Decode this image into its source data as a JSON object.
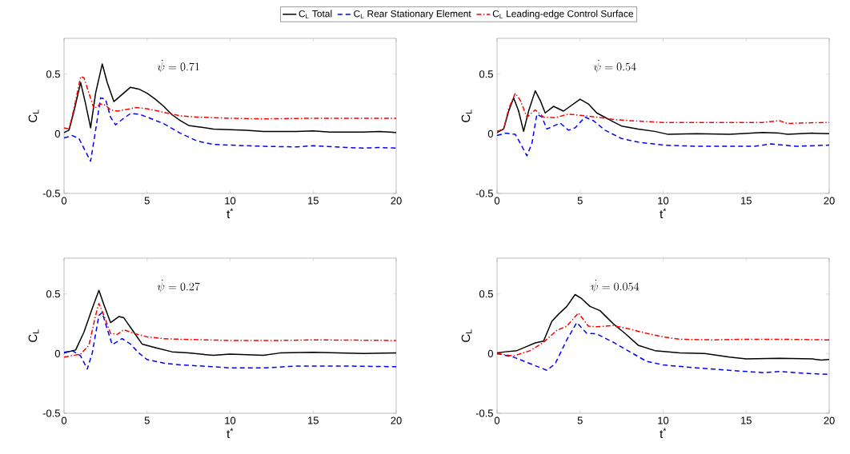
{
  "chart_data": [
    {
      "type": "line",
      "xlabel": "t$^{*}$",
      "ylabel": "C$_{L}$",
      "xlim": [
        0,
        20
      ],
      "ylim": [
        -0.5,
        0.8
      ],
      "xticks": [
        0,
        5,
        10,
        15,
        20
      ],
      "yticks": [
        -0.5,
        0,
        0.5
      ],
      "legend": "top",
      "annotations": [
        "\\dot{\\psi} = 0.71"
      ],
      "series": [
        {
          "name": "C$_{L}$ Total",
          "color": "#000000",
          "line_style": "solid",
          "x": [
            0,
            0.3,
            0.6,
            1.0,
            1.3,
            1.6,
            1.9,
            2.3,
            2.6,
            3.0,
            3.5,
            4.0,
            4.5,
            5,
            5.5,
            6,
            6.5,
            7,
            7.5,
            8,
            9,
            10,
            11,
            12,
            14,
            15,
            16,
            18,
            19,
            20
          ],
          "values": [
            0.01,
            0.03,
            0.19,
            0.43,
            0.25,
            0.05,
            0.34,
            0.585,
            0.43,
            0.27,
            0.33,
            0.39,
            0.375,
            0.34,
            0.29,
            0.23,
            0.16,
            0.11,
            0.07,
            0.06,
            0.04,
            0.035,
            0.03,
            0.02,
            0.02,
            0.025,
            0.015,
            0.015,
            0.02,
            0.01
          ]
        },
        {
          "name": "C$_{L}$ Rear Stationary Element",
          "color": "#0000ff",
          "line_style": "dashed",
          "x": [
            0,
            0.5,
            0.9,
            1.3,
            1.6,
            1.9,
            2.2,
            2.5,
            2.8,
            3.1,
            3.5,
            4,
            4.5,
            5,
            6,
            7,
            8,
            9,
            10,
            12,
            14,
            15,
            17,
            18,
            19,
            20
          ],
          "values": [
            -0.035,
            -0.015,
            -0.04,
            -0.15,
            -0.23,
            0.03,
            0.3,
            0.29,
            0.14,
            0.075,
            0.12,
            0.17,
            0.165,
            0.14,
            0.085,
            0.005,
            -0.06,
            -0.09,
            -0.095,
            -0.105,
            -0.11,
            -0.1,
            -0.115,
            -0.12,
            -0.115,
            -0.12
          ]
        },
        {
          "name": "C$_{L}$ Leading-edge Control Surface",
          "color": "#ff0000",
          "line_style": "dashdot",
          "x": [
            0,
            0.3,
            0.6,
            1.0,
            1.2,
            1.5,
            1.8,
            2.2,
            2.5,
            2.8,
            3.2,
            4,
            4.3,
            5,
            6,
            7,
            8,
            10,
            12,
            15,
            18,
            20
          ],
          "values": [
            0.05,
            0.04,
            0.21,
            0.48,
            0.47,
            0.34,
            0.21,
            0.25,
            0.24,
            0.2,
            0.19,
            0.21,
            0.22,
            0.21,
            0.18,
            0.15,
            0.14,
            0.13,
            0.125,
            0.13,
            0.13,
            0.13
          ]
        }
      ]
    },
    {
      "type": "line",
      "xlabel": "t$^{*}$",
      "ylabel": "C$_{L}$",
      "xlim": [
        0,
        20
      ],
      "ylim": [
        -0.5,
        0.8
      ],
      "xticks": [
        0,
        5,
        10,
        15,
        20
      ],
      "yticks": [
        -0.5,
        0,
        0.5
      ],
      "annotations": [
        "\\dot{\\psi} = 0.54"
      ],
      "series": [
        {
          "color": "#000000",
          "line_style": "solid",
          "x": [
            0,
            0.4,
            0.7,
            1,
            1.3,
            1.6,
            1.9,
            2.3,
            2.6,
            2.9,
            3.4,
            4,
            4.5,
            5,
            5.5,
            6,
            7,
            7.5,
            8.5,
            9.5,
            10.3,
            12,
            14,
            16,
            17,
            17.5,
            19,
            20
          ],
          "values": [
            0.01,
            0.04,
            0.19,
            0.3,
            0.19,
            0.02,
            0.19,
            0.36,
            0.28,
            0.175,
            0.23,
            0.19,
            0.24,
            0.29,
            0.25,
            0.175,
            0.1,
            0.065,
            0.04,
            0.02,
            -0.005,
            0,
            -0.005,
            0.01,
            0.005,
            -0.005,
            0.005,
            0
          ]
        },
        {
          "color": "#0000ff",
          "line_style": "dashed",
          "x": [
            0,
            0.5,
            1.1,
            1.4,
            1.8,
            2.1,
            2.4,
            2.7,
            3,
            3.4,
            3.8,
            4.3,
            4.7,
            5.3,
            5.8,
            6.5,
            7.5,
            8.5,
            10,
            12,
            14,
            15.5,
            16.5,
            18,
            20
          ],
          "values": [
            -0.015,
            0.005,
            -0.005,
            -0.08,
            -0.185,
            -0.08,
            0.165,
            0.14,
            0.04,
            0.065,
            0.09,
            0.03,
            0.05,
            0.14,
            0.11,
            0.03,
            -0.04,
            -0.07,
            -0.095,
            -0.105,
            -0.105,
            -0.105,
            -0.085,
            -0.105,
            -0.095
          ]
        },
        {
          "color": "#ff0000",
          "line_style": "dashdot",
          "x": [
            0,
            0.4,
            0.7,
            1.1,
            1.4,
            1.8,
            2.3,
            2.8,
            3.5,
            4.3,
            5,
            6,
            7,
            8,
            10,
            13,
            16,
            17,
            17.5,
            18,
            20
          ],
          "values": [
            0.02,
            0.04,
            0.21,
            0.34,
            0.28,
            0.14,
            0.2,
            0.14,
            0.135,
            0.165,
            0.155,
            0.14,
            0.12,
            0.11,
            0.095,
            0.095,
            0.095,
            0.11,
            0.085,
            0.09,
            0.095
          ]
        }
      ]
    },
    {
      "type": "line",
      "xlabel": "t$^{*}$",
      "ylabel": "C$_{L}$",
      "xlim": [
        0,
        20
      ],
      "ylim": [
        -0.5,
        0.8
      ],
      "xticks": [
        0,
        5,
        10,
        15,
        20
      ],
      "yticks": [
        -0.5,
        0,
        0.5
      ],
      "annotations": [
        "\\dot{\\psi} = 0.27"
      ],
      "series": [
        {
          "color": "#000000",
          "line_style": "solid",
          "x": [
            0,
            0.7,
            1.2,
            1.7,
            2.1,
            2.4,
            2.8,
            3.3,
            3.6,
            4.2,
            4.7,
            5.5,
            6.5,
            7.5,
            9,
            10,
            12,
            13,
            15,
            18,
            20
          ],
          "values": [
            0.005,
            0.03,
            0.18,
            0.38,
            0.53,
            0.41,
            0.26,
            0.31,
            0.3,
            0.18,
            0.08,
            0.05,
            0.015,
            0.005,
            -0.015,
            -0.005,
            -0.015,
            0.005,
            0.01,
            0,
            0.005
          ]
        },
        {
          "color": "#0000ff",
          "line_style": "dashed",
          "x": [
            0,
            0.5,
            1.0,
            1.4,
            1.7,
            2.1,
            2.3,
            2.6,
            2.9,
            3.5,
            4,
            4.5,
            5,
            6,
            7,
            9,
            10,
            12,
            14,
            17,
            20
          ],
          "values": [
            0.01,
            0.025,
            -0.02,
            -0.13,
            0.005,
            0.32,
            0.345,
            0.205,
            0.075,
            0.125,
            0.08,
            0.005,
            -0.05,
            -0.08,
            -0.095,
            -0.11,
            -0.12,
            -0.12,
            -0.105,
            -0.105,
            -0.11
          ]
        },
        {
          "color": "#ff0000",
          "line_style": "dashdot",
          "x": [
            0,
            1,
            1.5,
            1.9,
            2.1,
            2.4,
            2.8,
            3.2,
            3.6,
            4.2,
            5,
            6,
            7,
            10,
            13,
            15,
            20
          ],
          "values": [
            -0.03,
            -0.005,
            0.07,
            0.32,
            0.42,
            0.32,
            0.17,
            0.16,
            0.2,
            0.17,
            0.14,
            0.125,
            0.12,
            0.11,
            0.11,
            0.115,
            0.11
          ]
        }
      ]
    },
    {
      "type": "line",
      "xlabel": "t$^{*}$",
      "ylabel": "C$_{L}$",
      "xlim": [
        0,
        20
      ],
      "ylim": [
        -0.5,
        0.8
      ],
      "xticks": [
        0,
        5,
        10,
        15,
        20
      ],
      "yticks": [
        -0.5,
        0,
        0.5
      ],
      "annotations": [
        "\\dot{\\psi} = 0.054"
      ],
      "series": [
        {
          "color": "#000000",
          "line_style": "solid",
          "x": [
            0,
            0.5,
            1.2,
            1.8,
            2.3,
            2.8,
            3.3,
            3.7,
            4.2,
            4.7,
            5.1,
            5.6,
            6.2,
            7,
            7.7,
            8.5,
            9.5,
            11,
            12.5,
            14,
            15,
            17,
            19,
            19.5,
            20
          ],
          "values": [
            0.005,
            0.015,
            0.025,
            0.06,
            0.09,
            0.105,
            0.27,
            0.33,
            0.395,
            0.495,
            0.46,
            0.395,
            0.36,
            0.25,
            0.17,
            0.07,
            0.025,
            0.005,
            0,
            -0.03,
            -0.045,
            -0.04,
            -0.045,
            -0.055,
            -0.05
          ]
        },
        {
          "color": "#0000ff",
          "line_style": "dashed",
          "x": [
            0,
            1,
            2,
            3,
            3.5,
            4.2,
            4.8,
            5.4,
            6,
            7,
            8,
            9,
            10,
            12,
            14,
            16,
            17,
            18.5,
            20
          ],
          "values": [
            0,
            -0.03,
            -0.085,
            -0.14,
            -0.085,
            0.115,
            0.26,
            0.17,
            0.165,
            0.095,
            0.015,
            -0.065,
            -0.095,
            -0.12,
            -0.14,
            -0.16,
            -0.15,
            -0.165,
            -0.175
          ]
        },
        {
          "color": "#ff0000",
          "line_style": "dashdot",
          "x": [
            0,
            1,
            2,
            2.8,
            3.6,
            4.2,
            4.9,
            5.5,
            6,
            7,
            8,
            9,
            10,
            11,
            13,
            15,
            17,
            20
          ],
          "values": [
            0,
            -0.02,
            0.025,
            0.095,
            0.195,
            0.23,
            0.34,
            0.23,
            0.225,
            0.235,
            0.205,
            0.17,
            0.14,
            0.12,
            0.115,
            0.12,
            0.12,
            0.115
          ]
        }
      ]
    }
  ]
}
